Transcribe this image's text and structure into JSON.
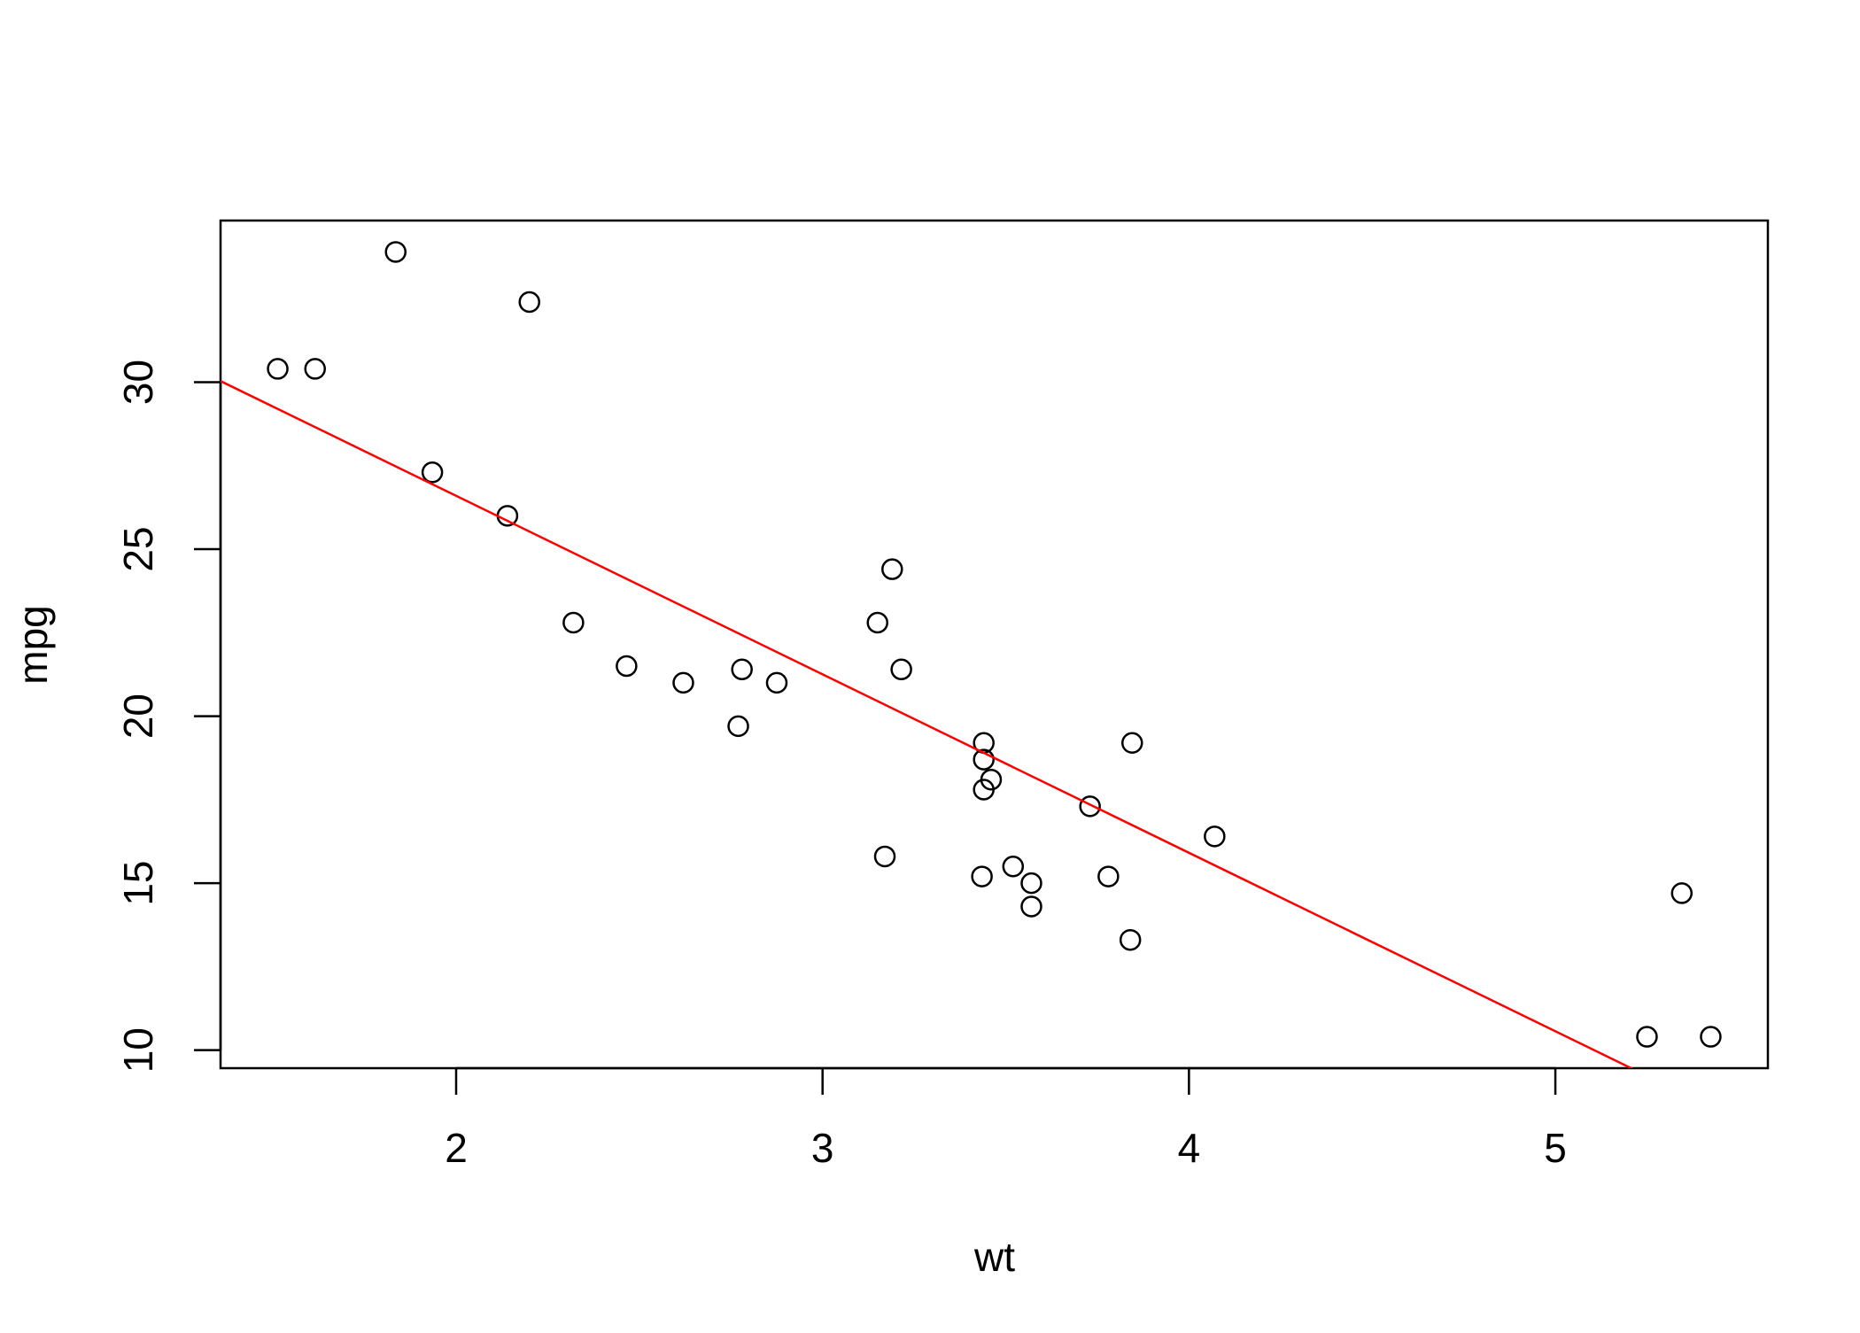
{
  "chart_data": {
    "type": "scatter",
    "x_label": "wt",
    "y_label": "mpg",
    "x": [
      2.62,
      2.875,
      2.32,
      3.215,
      3.44,
      3.46,
      3.57,
      3.19,
      3.15,
      3.44,
      3.44,
      4.07,
      3.73,
      3.78,
      5.25,
      5.424,
      5.345,
      2.2,
      1.615,
      1.835,
      2.465,
      3.52,
      3.435,
      3.84,
      3.845,
      1.935,
      2.14,
      1.513,
      3.17,
      2.77,
      3.57,
      2.78
    ],
    "values": [
      21.0,
      21.0,
      22.8,
      21.4,
      18.7,
      18.1,
      14.3,
      24.4,
      22.8,
      19.2,
      17.8,
      16.4,
      17.3,
      15.2,
      10.4,
      10.4,
      14.7,
      32.4,
      30.4,
      33.9,
      21.5,
      15.5,
      15.2,
      13.3,
      19.2,
      27.3,
      26.0,
      30.4,
      15.8,
      19.7,
      15.0,
      21.4
    ],
    "color": "#000000",
    "trend_line": {
      "intercept": 37.285,
      "slope": -5.344,
      "color": "#ff0000"
    },
    "xlim": [
      1.357,
      5.58
    ],
    "xticks": [
      2,
      3,
      4,
      5
    ],
    "ylim": [
      9.46,
      34.84
    ],
    "yticks": [
      10,
      15,
      20,
      25,
      30
    ],
    "grid": false
  }
}
